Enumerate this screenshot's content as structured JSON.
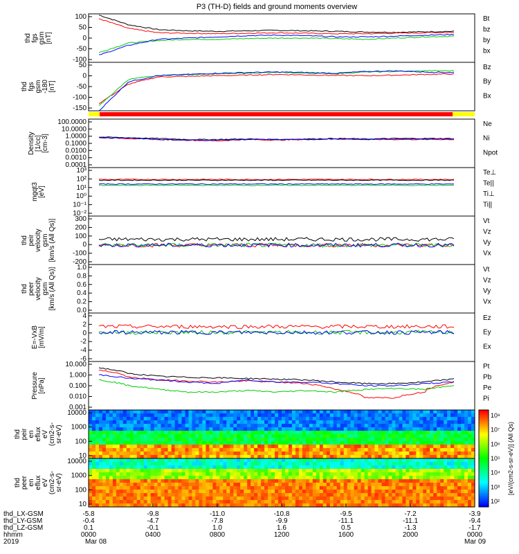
{
  "title": "P3 (TH-D) fields and ground moments overview",
  "chart_data": [
    {
      "type": "line",
      "ylabel": [
        "thd",
        "fgs",
        "gsm",
        "[nT]"
      ],
      "yticks": [
        "100",
        "50",
        "0",
        "-50",
        "-100"
      ],
      "ylim": [
        -100,
        100
      ],
      "series": [
        {
          "name": "Bt",
          "color": "#000000",
          "values": [
            95,
            55,
            35,
            30,
            28,
            30,
            32,
            30,
            28,
            25,
            24,
            26,
            28
          ]
        },
        {
          "name": "bz",
          "color": "#ff0000",
          "values": [
            80,
            40,
            22,
            20,
            18,
            20,
            22,
            20,
            18,
            18,
            20,
            22,
            24
          ]
        },
        {
          "name": "by",
          "color": "#00cc00",
          "values": [
            -60,
            -20,
            -10,
            -5,
            -5,
            -2,
            0,
            0,
            -2,
            -5,
            0,
            5,
            8
          ]
        },
        {
          "name": "bx",
          "color": "#0000ff",
          "values": [
            -70,
            -30,
            -5,
            0,
            5,
            10,
            12,
            10,
            5,
            5,
            8,
            12,
            15
          ]
        }
      ]
    },
    {
      "type": "line",
      "ylabel": [
        "thd",
        "fgs",
        "gsm",
        "-180",
        "[nT]"
      ],
      "yticks": [
        "50",
        "0",
        "-50",
        "-100",
        "-150"
      ],
      "ylim": [
        -150,
        50
      ],
      "series": [
        {
          "name": "Bz",
          "color": "#ff0000",
          "values": [
            -120,
            -40,
            -10,
            -8,
            -5,
            -3,
            0,
            -2,
            -4,
            -5,
            -3,
            0,
            2
          ]
        },
        {
          "name": "By",
          "color": "#00cc00",
          "values": [
            -130,
            -20,
            -5,
            0,
            2,
            5,
            8,
            5,
            3,
            10,
            12,
            15,
            15
          ]
        },
        {
          "name": "Bx",
          "color": "#0000ff",
          "values": [
            -150,
            -30,
            -5,
            0,
            5,
            8,
            10,
            8,
            5,
            12,
            15,
            10,
            8
          ]
        }
      ]
    },
    {
      "type": "line",
      "ylabel": [
        "Density",
        "[1/cc]",
        "[cm-3]"
      ],
      "yticks": [
        "100.0000",
        "10.0000",
        "1.0000",
        "0.1000",
        "0.0100",
        "0.0010",
        "0.0001"
      ],
      "ylim": [
        0.0001,
        100
      ],
      "scale": "log",
      "series": [
        {
          "name": "Ne",
          "color": "#ff0000",
          "values": [
            0.5,
            0.4,
            0.3,
            0.25,
            0.2,
            0.3,
            0.25,
            0.3,
            0.35,
            0.3,
            0.3,
            0.3,
            0.3
          ]
        },
        {
          "name": "Ni",
          "color": "#000000",
          "values": [
            0.6,
            0.5,
            0.4,
            0.3,
            0.3,
            0.35,
            0.3,
            0.35,
            0.4,
            0.35,
            0.4,
            0.4,
            0.4
          ]
        },
        {
          "name": "Npot",
          "color": "#0000ff",
          "values": [
            0.5,
            0.45,
            0.3,
            0.25,
            0.25,
            0.3,
            0.3,
            0.3,
            0.35,
            0.3,
            0.35,
            0.35,
            0.35
          ]
        }
      ]
    },
    {
      "type": "line",
      "ylabel": [
        "mgqt3",
        "[eV]"
      ],
      "yticks": [
        "10³",
        "10²",
        "10¹",
        "10⁰",
        "10⁻¹",
        "10⁻²"
      ],
      "ylim": [
        0.01,
        1000
      ],
      "scale": "log",
      "series": [
        {
          "name": "Te⊥",
          "color": "#ff0000",
          "values": []
        },
        {
          "name": "Te||",
          "color": "#000000",
          "values": []
        },
        {
          "name": "Ti⊥",
          "color": "#0000ff",
          "values": []
        },
        {
          "name": "Ti||",
          "color": "#00cc00",
          "values": []
        }
      ]
    },
    {
      "type": "line",
      "ylabel": [
        "thd",
        "peir",
        "velocity",
        "gsm",
        "[km/s (All Qs)]"
      ],
      "yticks": [
        "300",
        "200",
        "100",
        "0",
        "-100",
        "-200"
      ],
      "ylim": [
        -200,
        300
      ],
      "series": [
        {
          "name": "Vt",
          "color": "#000000",
          "values": []
        },
        {
          "name": "Vz",
          "color": "#ff0000",
          "values": []
        },
        {
          "name": "Vy",
          "color": "#00cc00",
          "values": []
        },
        {
          "name": "Vx",
          "color": "#0000ff",
          "values": []
        }
      ]
    },
    {
      "type": "line",
      "ylabel": [
        "thd",
        "peer",
        "velocity",
        "gsm",
        "[km/s (All Qs)]"
      ],
      "yticks": [
        "1.0",
        "0.8",
        "0.6",
        "0.4",
        "0.2",
        "0.0"
      ],
      "ylim": [
        0,
        1
      ],
      "series": [
        {
          "name": "Vt",
          "color": "#000000",
          "values": []
        },
        {
          "name": "Vz",
          "color": "#ff0000",
          "values": []
        },
        {
          "name": "Vy",
          "color": "#00cc00",
          "values": []
        },
        {
          "name": "Vx",
          "color": "#0000ff",
          "values": []
        }
      ]
    },
    {
      "type": "line",
      "ylabel": [
        "E=-VxB",
        "[mV/m]"
      ],
      "yticks": [
        "4",
        "2",
        "0",
        "-2",
        "-4",
        "-6"
      ],
      "ylim": [
        -6,
        4
      ],
      "series": [
        {
          "name": "Ez",
          "color": "#ff0000",
          "values": []
        },
        {
          "name": "Ey",
          "color": "#00cc00",
          "values": []
        },
        {
          "name": "Ex",
          "color": "#0000ff",
          "values": []
        }
      ]
    },
    {
      "type": "line",
      "ylabel": [
        "Pressure",
        "[nPa]"
      ],
      "yticks": [
        "10.000",
        "1.000",
        "0.100",
        "0.010",
        "0.001"
      ],
      "ylim": [
        0.001,
        10
      ],
      "scale": "log",
      "series": [
        {
          "name": "Pt",
          "color": "#000000",
          "values": [
            3.0,
            1.0,
            0.6,
            0.5,
            0.45,
            0.4,
            0.35,
            0.3,
            0.2,
            0.15,
            0.15,
            0.2,
            0.35
          ]
        },
        {
          "name": "Pb",
          "color": "#ff0000",
          "values": [
            2.0,
            0.5,
            0.3,
            0.25,
            0.2,
            0.25,
            0.2,
            0.15,
            0.05,
            0.01,
            0.01,
            0.03,
            0.2
          ]
        },
        {
          "name": "Pe",
          "color": "#00cc00",
          "values": [
            0.3,
            0.1,
            0.05,
            0.03,
            0.03,
            0.04,
            0.03,
            0.04,
            0.03,
            0.05,
            0.06,
            0.05,
            0.1
          ]
        },
        {
          "name": "Pi",
          "color": "#0000ff",
          "values": [
            0.8,
            0.4,
            0.3,
            0.2,
            0.15,
            0.3,
            0.2,
            0.2,
            0.15,
            0.1,
            0.1,
            0.15,
            0.2
          ]
        }
      ]
    },
    {
      "type": "heatmap",
      "ylabel": [
        "thd",
        "peir",
        "en",
        "eflux",
        "eV",
        "(cm2-s-",
        "sr-eV)"
      ],
      "yticks": [
        "10000",
        "1000",
        "100",
        "10"
      ],
      "ylim": [
        5,
        30000
      ]
    },
    {
      "type": "heatmap",
      "ylabel": [
        "thd",
        "peer",
        "en",
        "eflux",
        "eV",
        "(cm2-s-",
        "sr-eV)"
      ],
      "yticks": [
        "10000",
        "1000",
        "100",
        "10"
      ],
      "ylim": [
        5,
        30000
      ]
    }
  ],
  "colorbar": {
    "ticks": [
      "10⁸",
      "10⁷",
      "10⁶",
      "10⁵",
      "10⁴",
      "10³",
      "10²"
    ],
    "label": "[eV/(cm2-s-sr-eV)] (All Qs)"
  },
  "xaxis": {
    "rows": [
      {
        "label": "thd_LX-GSM",
        "values": [
          "-5.8",
          "-9.8",
          "-11.0",
          "-10.8",
          "-9.5",
          "-7.2",
          "-3.9"
        ]
      },
      {
        "label": "thd_LY-GSM",
        "values": [
          "-0.4",
          "-4.7",
          "-7.8",
          "-9.9",
          "-11.1",
          "-11.1",
          "-9.4"
        ]
      },
      {
        "label": "thd_LZ-GSM",
        "values": [
          "0.1",
          "-0.1",
          "1.0",
          "1.6",
          "0.5",
          "-1.3",
          "-1.7"
        ]
      },
      {
        "label": "hhmm",
        "values": [
          "0000",
          "0400",
          "0800",
          "1200",
          "1600",
          "2000",
          "0000"
        ]
      }
    ],
    "year": "2019",
    "date_start": "Mar 08",
    "date_end": "Mar 09"
  }
}
